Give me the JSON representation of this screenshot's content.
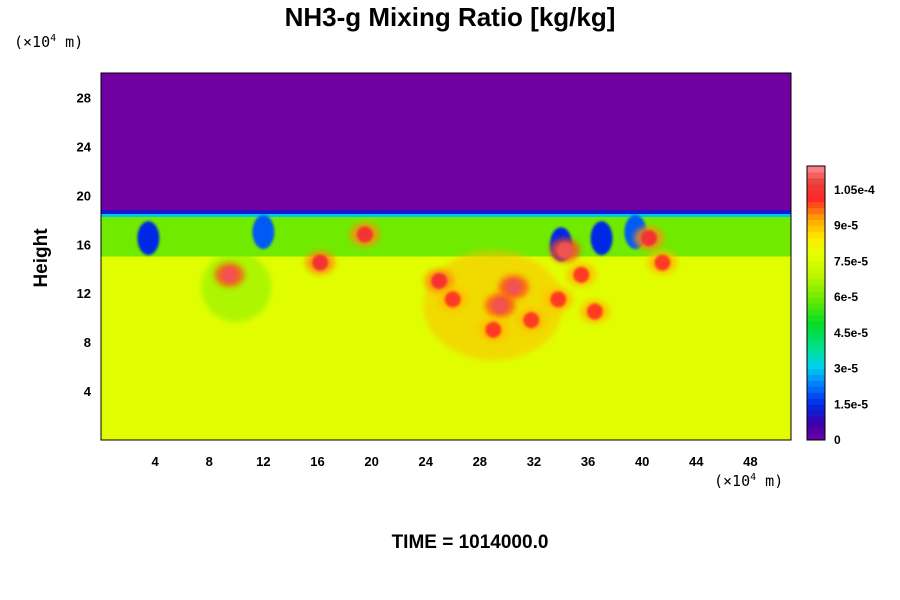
{
  "chart_data": {
    "type": "heatmap",
    "title": "NH3-g Mixing Ratio [kg/kg]",
    "ylabel": "Height",
    "xlabel": "",
    "x_unit": "(×10",
    "y_unit": "(×10",
    "unit_exponent": "4",
    "unit_suffix": " m)",
    "xlim": [
      0,
      51
    ],
    "ylim": [
      0,
      30
    ],
    "x_ticks": [
      "4",
      "8",
      "12",
      "16",
      "20",
      "24",
      "28",
      "32",
      "36",
      "40",
      "44",
      "48"
    ],
    "x_tick_values": [
      4,
      8,
      12,
      16,
      20,
      24,
      28,
      32,
      36,
      40,
      44,
      48
    ],
    "y_ticks": [
      "4",
      "8",
      "12",
      "16",
      "20",
      "24",
      "28"
    ],
    "y_tick_values": [
      4,
      8,
      12,
      16,
      20,
      24,
      28
    ],
    "colorbar": {
      "range": [
        0,
        0.000115
      ],
      "labels": [
        "1.05e-4",
        "9e-5",
        "7.5e-5",
        "6e-5",
        "4.5e-5",
        "3e-5",
        "1.5e-5",
        "0"
      ],
      "label_values": [
        0.000105,
        9e-05,
        7.5e-05,
        6e-05,
        4.5e-05,
        3e-05,
        1.5e-05,
        0
      ]
    },
    "background_levels": {
      "upper_layer_above_height_18": 0,
      "mixed_band_height_15_to_18": 6e-05,
      "lower_layer_below_height_15": 7.7e-05
    },
    "high_value_patches": [
      {
        "x": 9.5,
        "y": 13.5,
        "value": 0.00011
      },
      {
        "x": 16.2,
        "y": 14.5,
        "value": 0.000105
      },
      {
        "x": 19.5,
        "y": 16.8,
        "value": 0.000105
      },
      {
        "x": 25.0,
        "y": 13.0,
        "value": 0.000105
      },
      {
        "x": 26.0,
        "y": 11.5,
        "value": 0.0001
      },
      {
        "x": 29.5,
        "y": 11.0,
        "value": 0.00011
      },
      {
        "x": 30.5,
        "y": 12.5,
        "value": 0.00011
      },
      {
        "x": 29.0,
        "y": 9.0,
        "value": 0.0001
      },
      {
        "x": 31.8,
        "y": 9.8,
        "value": 0.0001
      },
      {
        "x": 34.3,
        "y": 15.5,
        "value": 0.00011
      },
      {
        "x": 33.8,
        "y": 11.5,
        "value": 0.0001
      },
      {
        "x": 35.5,
        "y": 13.5,
        "value": 0.0001
      },
      {
        "x": 36.5,
        "y": 10.5,
        "value": 0.0001
      },
      {
        "x": 40.5,
        "y": 16.5,
        "value": 0.000105
      },
      {
        "x": 41.5,
        "y": 14.5,
        "value": 0.0001
      }
    ],
    "low_value_filaments": [
      {
        "x": 3.5,
        "y": 16.5,
        "value": 1.5e-05
      },
      {
        "x": 12.0,
        "y": 17.0,
        "value": 2e-05
      },
      {
        "x": 34.0,
        "y": 16.0,
        "value": 1.5e-05
      },
      {
        "x": 37.0,
        "y": 16.5,
        "value": 1.5e-05
      },
      {
        "x": 39.5,
        "y": 17.0,
        "value": 2e-05
      }
    ],
    "time_label": "TIME = 1014000.0"
  }
}
